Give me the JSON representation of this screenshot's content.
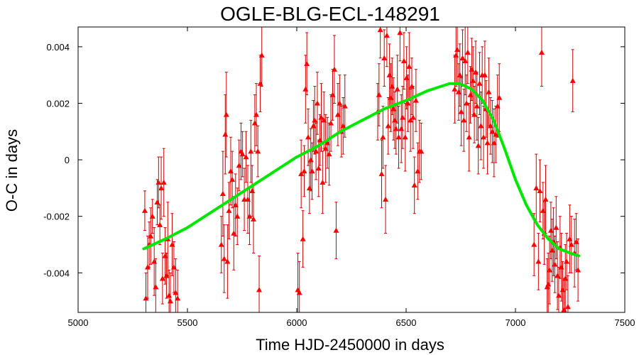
{
  "chart_data": {
    "type": "scatter",
    "title": "OGLE-BLG-ECL-148291",
    "xlabel": "Time HJD-2450000 in days",
    "ylabel": "O-C in days",
    "xlim": [
      5000,
      7500
    ],
    "ylim": [
      -0.0054,
      0.0047
    ],
    "xticks": [
      5000,
      5500,
      6000,
      6500,
      7000,
      7500
    ],
    "xtick_labels": [
      "5000",
      "5500",
      "6000",
      "6500",
      "7000",
      "7500"
    ],
    "yticks": [
      -0.004,
      -0.002,
      0,
      0.002,
      0.004
    ],
    "ytick_labels": [
      "-0.004",
      "-0.002",
      "0",
      "0.002",
      "0.004"
    ],
    "grid": false,
    "colors": {
      "points": "#ff0000",
      "errorbars": "#cc0000",
      "fit": "#00e600"
    },
    "series": [
      {
        "kind": "points_with_errorbars",
        "marker": "triangle",
        "points": [
          {
            "x": 5305,
            "y": -0.0018,
            "err": 0.0007
          },
          {
            "x": 5310,
            "y": -0.0049,
            "err": 0.0009
          },
          {
            "x": 5318,
            "y": -0.0038,
            "err": 0.0011
          },
          {
            "x": 5325,
            "y": -0.003,
            "err": 0.0008
          },
          {
            "x": 5332,
            "y": -0.0027,
            "err": 0.001
          },
          {
            "x": 5340,
            "y": -0.002,
            "err": 0.0006
          },
          {
            "x": 5348,
            "y": -0.0036,
            "err": 0.0012
          },
          {
            "x": 5355,
            "y": -0.0045,
            "err": 0.001
          },
          {
            "x": 5362,
            "y": -0.0015,
            "err": 0.0008
          },
          {
            "x": 5368,
            "y": -0.0008,
            "err": 0.0009
          },
          {
            "x": 5374,
            "y": -0.0023,
            "err": 0.0007
          },
          {
            "x": 5380,
            "y": -0.001,
            "err": 0.0011
          },
          {
            "x": 5386,
            "y": -0.0042,
            "err": 0.0009
          },
          {
            "x": 5392,
            "y": -0.0008,
            "err": 0.0012
          },
          {
            "x": 5398,
            "y": -0.0034,
            "err": 0.001
          },
          {
            "x": 5404,
            "y": -0.0041,
            "err": 0.0008
          },
          {
            "x": 5410,
            "y": -0.0028,
            "err": 0.0013
          },
          {
            "x": 5416,
            "y": -0.0048,
            "err": 0.0009
          },
          {
            "x": 5422,
            "y": -0.005,
            "err": 0.001
          },
          {
            "x": 5430,
            "y": -0.003,
            "err": 0.0011
          },
          {
            "x": 5438,
            "y": -0.0038,
            "err": 0.0009
          },
          {
            "x": 5446,
            "y": -0.0047,
            "err": 0.0012
          },
          {
            "x": 5455,
            "y": -0.0049,
            "err": 0.001
          },
          {
            "x": 5655,
            "y": -0.003,
            "err": 0.001
          },
          {
            "x": 5662,
            "y": -0.0012,
            "err": 0.0015
          },
          {
            "x": 5668,
            "y": -0.0035,
            "err": 0.0012
          },
          {
            "x": 5673,
            "y": 0.0009,
            "err": 0.0014
          },
          {
            "x": 5678,
            "y": 0.0016,
            "err": 0.0015
          },
          {
            "x": 5683,
            "y": -0.0036,
            "err": 0.0013
          },
          {
            "x": 5690,
            "y": -0.0018,
            "err": 0.001
          },
          {
            "x": 5698,
            "y": -0.0004,
            "err": 0.0012
          },
          {
            "x": 5705,
            "y": -0.0007,
            "err": 0.001
          },
          {
            "x": 5712,
            "y": -0.0026,
            "err": 0.0013
          },
          {
            "x": 5720,
            "y": -0.0016,
            "err": 0.0011
          },
          {
            "x": 5728,
            "y": -0.002,
            "err": 0.001
          },
          {
            "x": 5736,
            "y": -0.0002,
            "err": 0.0009
          },
          {
            "x": 5745,
            "y": 0.0003,
            "err": 0.001
          },
          {
            "x": 5752,
            "y": 0.0002,
            "err": 0.0008
          },
          {
            "x": 5760,
            "y": -0.0014,
            "err": 0.0011
          },
          {
            "x": 5768,
            "y": 0.0001,
            "err": 0.0009
          },
          {
            "x": 5776,
            "y": -0.0014,
            "err": 0.0012
          },
          {
            "x": 5784,
            "y": -0.002,
            "err": 0.001
          },
          {
            "x": 5790,
            "y": 0.0003,
            "err": 0.0011
          },
          {
            "x": 5796,
            "y": -0.0011,
            "err": 0.0009
          },
          {
            "x": 5802,
            "y": -0.0021,
            "err": 0.0012
          },
          {
            "x": 5808,
            "y": 0.0013,
            "err": 0.001
          },
          {
            "x": 5815,
            "y": 0.0016,
            "err": 0.0011
          },
          {
            "x": 5822,
            "y": 0.0003,
            "err": 0.0009
          },
          {
            "x": 5828,
            "y": -0.0046,
            "err": 0.0012
          },
          {
            "x": 5833,
            "y": 0.0027,
            "err": 0.001
          },
          {
            "x": 5840,
            "y": 0.0037,
            "err": 0.0011
          },
          {
            "x": 6005,
            "y": -0.0046,
            "err": 0.0013
          },
          {
            "x": 6012,
            "y": -0.0047,
            "err": 0.0011
          },
          {
            "x": 6020,
            "y": -0.0005,
            "err": 0.0012
          },
          {
            "x": 6028,
            "y": -0.0028,
            "err": 0.001
          },
          {
            "x": 6034,
            "y": -0.0004,
            "err": 0.0009
          },
          {
            "x": 6040,
            "y": 0.0025,
            "err": 0.0012
          },
          {
            "x": 6046,
            "y": 0.0034,
            "err": 0.0011
          },
          {
            "x": 6052,
            "y": 0.0008,
            "err": 0.001
          },
          {
            "x": 6058,
            "y": -0.001,
            "err": 0.0009
          },
          {
            "x": 6064,
            "y": 0.0,
            "err": 0.0011
          },
          {
            "x": 6070,
            "y": -0.0004,
            "err": 0.001
          },
          {
            "x": 6076,
            "y": 0.0012,
            "err": 0.0009
          },
          {
            "x": 6082,
            "y": 0.0014,
            "err": 0.0012
          },
          {
            "x": 6088,
            "y": 0.0003,
            "err": 0.001
          },
          {
            "x": 6094,
            "y": 0.002,
            "err": 0.0011
          },
          {
            "x": 6100,
            "y": -0.0003,
            "err": 0.001
          },
          {
            "x": 6106,
            "y": 0.0007,
            "err": 0.0009
          },
          {
            "x": 6112,
            "y": 0.0015,
            "err": 0.0012
          },
          {
            "x": 6118,
            "y": -0.0008,
            "err": 0.0011
          },
          {
            "x": 6124,
            "y": 0.0014,
            "err": 0.001
          },
          {
            "x": 6132,
            "y": 0.0004,
            "err": 0.0012
          },
          {
            "x": 6140,
            "y": 0.0006,
            "err": 0.0009
          },
          {
            "x": 6148,
            "y": 0.0002,
            "err": 0.0011
          },
          {
            "x": 6156,
            "y": 0.0013,
            "err": 0.001
          },
          {
            "x": 6164,
            "y": 0.0023,
            "err": 0.0009
          },
          {
            "x": 6172,
            "y": 0.0032,
            "err": 0.0012
          },
          {
            "x": 6180,
            "y": -0.0025,
            "err": 0.001
          },
          {
            "x": 6188,
            "y": 0.0016,
            "err": 0.0011
          },
          {
            "x": 6196,
            "y": 0.002,
            "err": 0.001
          },
          {
            "x": 6204,
            "y": 0.001,
            "err": 0.0009
          },
          {
            "x": 6212,
            "y": 0.0012,
            "err": 0.001
          },
          {
            "x": 6220,
            "y": 0.0019,
            "err": 0.0011
          },
          {
            "x": 6370,
            "y": 0.0017,
            "err": 0.001
          },
          {
            "x": 6376,
            "y": 0.0023,
            "err": 0.0011
          },
          {
            "x": 6382,
            "y": 0.0046,
            "err": 0.001
          },
          {
            "x": 6388,
            "y": -0.0005,
            "err": 0.0012
          },
          {
            "x": 6394,
            "y": 0.0008,
            "err": 0.0011
          },
          {
            "x": 6400,
            "y": 0.0036,
            "err": 0.001
          },
          {
            "x": 6406,
            "y": -0.0014,
            "err": 0.0012
          },
          {
            "x": 6412,
            "y": 0.0044,
            "err": 0.0011
          },
          {
            "x": 6418,
            "y": 0.0012,
            "err": 0.001
          },
          {
            "x": 6424,
            "y": 0.003,
            "err": 0.0011
          },
          {
            "x": 6430,
            "y": 0.0022,
            "err": 0.0012
          },
          {
            "x": 6436,
            "y": 0.0026,
            "err": 0.001
          },
          {
            "x": 6442,
            "y": 0.0018,
            "err": 0.0011
          },
          {
            "x": 6448,
            "y": 0.0014,
            "err": 0.001
          },
          {
            "x": 6454,
            "y": 0.0011,
            "err": 0.0009
          },
          {
            "x": 6460,
            "y": 0.0025,
            "err": 0.0012
          },
          {
            "x": 6466,
            "y": 0.0008,
            "err": 0.0011
          },
          {
            "x": 6472,
            "y": 0.0045,
            "err": 0.001
          },
          {
            "x": 6478,
            "y": 0.0011,
            "err": 0.0012
          },
          {
            "x": 6484,
            "y": 0.0015,
            "err": 0.0011
          },
          {
            "x": 6490,
            "y": 0.0035,
            "err": 0.001
          },
          {
            "x": 6496,
            "y": 0.0008,
            "err": 0.0012
          },
          {
            "x": 6502,
            "y": 0.0029,
            "err": 0.0011
          },
          {
            "x": 6508,
            "y": 0.002,
            "err": 0.001
          },
          {
            "x": 6514,
            "y": 0.0033,
            "err": 0.0012
          },
          {
            "x": 6520,
            "y": 0.0014,
            "err": 0.0011
          },
          {
            "x": 6526,
            "y": 0.0026,
            "err": 0.001
          },
          {
            "x": 6532,
            "y": 0.0015,
            "err": 0.0011
          },
          {
            "x": 6538,
            "y": -0.0009,
            "err": 0.001
          },
          {
            "x": 6545,
            "y": 0.0021,
            "err": 0.0011
          },
          {
            "x": 6553,
            "y": -0.0004,
            "err": 0.001
          },
          {
            "x": 6561,
            "y": 0.0003,
            "err": 0.0011
          },
          {
            "x": 6569,
            "y": 0.0003,
            "err": 0.001
          },
          {
            "x": 6722,
            "y": 0.0025,
            "err": 0.0012
          },
          {
            "x": 6728,
            "y": 0.0037,
            "err": 0.0011
          },
          {
            "x": 6734,
            "y": 0.0039,
            "err": 0.0012
          },
          {
            "x": 6740,
            "y": 0.0024,
            "err": 0.001
          },
          {
            "x": 6746,
            "y": 0.003,
            "err": 0.0011
          },
          {
            "x": 6752,
            "y": 0.0017,
            "err": 0.0012
          },
          {
            "x": 6758,
            "y": 0.0036,
            "err": 0.001
          },
          {
            "x": 6764,
            "y": 0.0014,
            "err": 0.0011
          },
          {
            "x": 6770,
            "y": 0.0035,
            "err": 0.0012
          },
          {
            "x": 6776,
            "y": 0.002,
            "err": 0.001
          },
          {
            "x": 6782,
            "y": 0.0038,
            "err": 0.0011
          },
          {
            "x": 6788,
            "y": 0.0008,
            "err": 0.0012
          },
          {
            "x": 6794,
            "y": 0.0023,
            "err": 0.001
          },
          {
            "x": 6800,
            "y": 0.0032,
            "err": 0.0011
          },
          {
            "x": 6806,
            "y": 0.0028,
            "err": 0.0012
          },
          {
            "x": 6812,
            "y": 0.0016,
            "err": 0.001
          },
          {
            "x": 6818,
            "y": 0.0031,
            "err": 0.0011
          },
          {
            "x": 6824,
            "y": 0.0019,
            "err": 0.0012
          },
          {
            "x": 6830,
            "y": 0.0005,
            "err": 0.001
          },
          {
            "x": 6836,
            "y": 0.0027,
            "err": 0.0011
          },
          {
            "x": 6842,
            "y": 0.0012,
            "err": 0.0012
          },
          {
            "x": 6848,
            "y": 0.003,
            "err": 0.001
          },
          {
            "x": 6854,
            "y": 0.0008,
            "err": 0.0011
          },
          {
            "x": 6860,
            "y": 0.003,
            "err": 0.0012
          },
          {
            "x": 6866,
            "y": 0.0018,
            "err": 0.001
          },
          {
            "x": 6872,
            "y": 0.0006,
            "err": 0.0011
          },
          {
            "x": 6878,
            "y": 0.0024,
            "err": 0.0012
          },
          {
            "x": 6886,
            "y": 0.0012,
            "err": 0.001
          },
          {
            "x": 6894,
            "y": 0.001,
            "err": 0.0011
          },
          {
            "x": 6902,
            "y": 0.0006,
            "err": 0.0012
          },
          {
            "x": 6910,
            "y": 0.0009,
            "err": 0.001
          },
          {
            "x": 6918,
            "y": 0.0019,
            "err": 0.0011
          },
          {
            "x": 6926,
            "y": 0.0022,
            "err": 0.0012
          },
          {
            "x": 7085,
            "y": -0.003,
            "err": 0.0011
          },
          {
            "x": 7095,
            "y": -0.001,
            "err": 0.0012
          },
          {
            "x": 7105,
            "y": -0.0036,
            "err": 0.001
          },
          {
            "x": 7112,
            "y": -0.0011,
            "err": 0.0011
          },
          {
            "x": 7120,
            "y": 0.0038,
            "err": 0.0012
          },
          {
            "x": 7126,
            "y": -0.0018,
            "err": 0.001
          },
          {
            "x": 7132,
            "y": -0.0026,
            "err": 0.0011
          },
          {
            "x": 7138,
            "y": -0.0014,
            "err": 0.0012
          },
          {
            "x": 7145,
            "y": -0.0045,
            "err": 0.001
          },
          {
            "x": 7150,
            "y": -0.0044,
            "err": 0.0011
          },
          {
            "x": 7156,
            "y": -0.0039,
            "err": 0.0012
          },
          {
            "x": 7162,
            "y": -0.0025,
            "err": 0.001
          },
          {
            "x": 7168,
            "y": -0.0032,
            "err": 0.0011
          },
          {
            "x": 7174,
            "y": -0.0029,
            "err": 0.0012
          },
          {
            "x": 7180,
            "y": -0.0037,
            "err": 0.001
          },
          {
            "x": 7186,
            "y": -0.0024,
            "err": 0.0011
          },
          {
            "x": 7192,
            "y": -0.0041,
            "err": 0.0012
          },
          {
            "x": 7198,
            "y": -0.0048,
            "err": 0.001
          },
          {
            "x": 7204,
            "y": -0.0031,
            "err": 0.0011
          },
          {
            "x": 7210,
            "y": -0.0038,
            "err": 0.0012
          },
          {
            "x": 7216,
            "y": -0.0046,
            "err": 0.001
          },
          {
            "x": 7222,
            "y": -0.0053,
            "err": 0.0011
          },
          {
            "x": 7228,
            "y": -0.0042,
            "err": 0.0012
          },
          {
            "x": 7234,
            "y": -0.0036,
            "err": 0.001
          },
          {
            "x": 7240,
            "y": -0.0052,
            "err": 0.0011
          },
          {
            "x": 7248,
            "y": -0.0028,
            "err": 0.0012
          },
          {
            "x": 7256,
            "y": -0.003,
            "err": 0.001
          },
          {
            "x": 7262,
            "y": 0.0028,
            "err": 0.0011
          },
          {
            "x": 7270,
            "y": -0.0033,
            "err": 0.0012
          },
          {
            "x": 7278,
            "y": -0.0029,
            "err": 0.001
          },
          {
            "x": 7286,
            "y": -0.0039,
            "err": 0.0011
          }
        ]
      },
      {
        "kind": "fit_line",
        "x": [
          5300,
          5400,
          5500,
          5600,
          5700,
          5800,
          5900,
          6000,
          6100,
          6200,
          6300,
          6400,
          6500,
          6600,
          6700,
          6750,
          6800,
          6850,
          6900,
          6950,
          7000,
          7050,
          7100,
          7150,
          7200,
          7250,
          7290
        ],
        "y": [
          -0.00315,
          -0.0028,
          -0.0024,
          -0.0019,
          -0.0014,
          -0.0009,
          -0.0004,
          0.0001,
          0.0005,
          0.001,
          0.0014,
          0.0018,
          0.0021,
          0.00245,
          0.0027,
          0.00268,
          0.0025,
          0.0021,
          0.0014,
          0.0004,
          -0.0007,
          -0.0016,
          -0.0023,
          -0.0028,
          -0.00315,
          -0.0033,
          -0.0034
        ]
      }
    ]
  }
}
